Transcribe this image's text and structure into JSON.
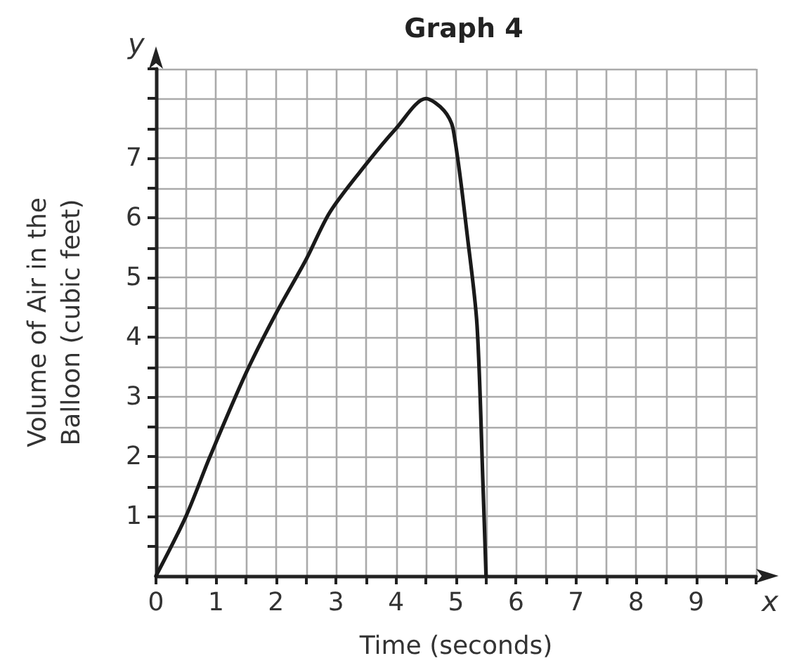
{
  "chart_data": {
    "type": "line",
    "title": "Graph 4",
    "xlabel": "Time (seconds)",
    "ylabel": "Volume of Air in the Balloon (cubic feet)",
    "annotations": [
      "x",
      "y"
    ],
    "x": [
      0,
      0.5,
      0.9,
      1.5,
      2,
      2.5,
      2.9,
      3.5,
      4,
      4.5,
      4.8,
      4.95,
      5.2,
      5.35,
      5.45,
      5.5
    ],
    "series": [
      {
        "color": "#1a1a1a",
        "values": [
          0,
          1,
          2,
          3.4,
          4.4,
          5.3,
          6.1,
          6.9,
          7.5,
          8,
          7.8,
          7.5,
          5.6,
          4.2,
          1.5,
          0
        ]
      }
    ],
    "xlim": [
      0,
      10
    ],
    "ylim": [
      0,
      8.5
    ],
    "xticks": [
      0,
      {
        "value": 0.5,
        "label": null
      },
      1,
      {
        "value": 1.5,
        "label": null
      },
      2,
      {
        "value": 2.5,
        "label": null
      },
      3,
      {
        "value": 3.5,
        "label": null
      },
      4,
      {
        "value": 4.5,
        "label": null
      },
      5,
      {
        "value": 5.5,
        "label": null
      },
      6,
      {
        "value": 6.5,
        "label": null
      },
      7,
      {
        "value": 7.5,
        "label": null
      },
      8,
      {
        "value": 8.5,
        "label": null
      },
      9,
      {
        "value": 9.5,
        "label": null
      },
      {
        "value": 10,
        "label": null
      }
    ],
    "yticks": [
      {
        "value": 0.5,
        "label": null
      },
      1,
      {
        "value": 1.5,
        "label": null
      },
      2,
      {
        "value": 2.5,
        "label": null
      },
      3,
      {
        "value": 3.5,
        "label": null
      },
      4,
      {
        "value": 4.5,
        "label": null
      },
      5,
      {
        "value": 5.5,
        "label": null
      },
      6,
      {
        "value": 6.5,
        "label": null
      },
      7,
      {
        "value": 7.5,
        "label": null
      },
      {
        "value": 8,
        "label": null
      },
      {
        "value": 8.5,
        "label": null
      }
    ],
    "grid": true,
    "marker": "none",
    "line_style": "solid"
  }
}
